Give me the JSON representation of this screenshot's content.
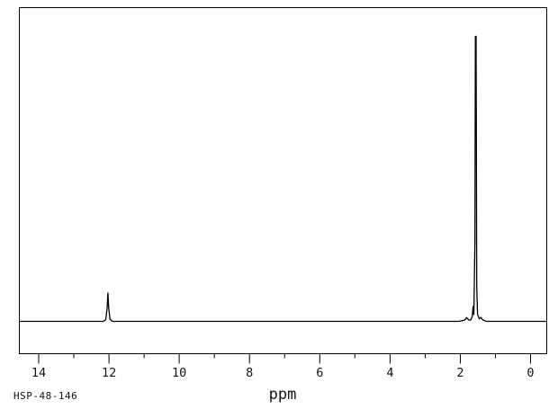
{
  "figure": {
    "background_color": "#ffffff",
    "line_color": "#000000",
    "text_color": "#141414"
  },
  "annotation_id": "HSP-48-146",
  "chart_data": {
    "type": "line",
    "subtype": "1H-NMR-spectrum",
    "title": "",
    "xlabel": "ppm",
    "ylabel": "",
    "x_axis": {
      "unit": "ppm",
      "reversed": true,
      "left_ppm": 14.55,
      "right_ppm": -0.46,
      "major_tick_labels": [
        "14",
        "12",
        "10",
        "8",
        "6",
        "4",
        "2",
        "0"
      ],
      "major_tick_values": [
        14,
        12,
        10,
        8,
        6,
        4,
        2,
        0
      ],
      "minor_tick_values": [
        13,
        11,
        9,
        7,
        5,
        3,
        1
      ]
    },
    "grid": false,
    "legend": false,
    "peaks": [
      {
        "ppm": 12.0,
        "relative_intensity": 0.1
      },
      {
        "ppm": 1.63,
        "relative_intensity": 0.05
      },
      {
        "ppm": 1.55,
        "relative_intensity": 1.0
      }
    ],
    "trace_ppm_intensity": [
      [
        14.55,
        0
      ],
      [
        12.16,
        0
      ],
      [
        12.09,
        0.006
      ],
      [
        12.05,
        0.05
      ],
      [
        12.03,
        0.101
      ],
      [
        12.01,
        0.05
      ],
      [
        11.97,
        0.008
      ],
      [
        11.9,
        0
      ],
      [
        2.05,
        0
      ],
      [
        1.88,
        0.004
      ],
      [
        1.82,
        0.013
      ],
      [
        1.76,
        0.005
      ],
      [
        1.71,
        0.004
      ],
      [
        1.66,
        0.016
      ],
      [
        1.635,
        0.054
      ],
      [
        1.615,
        0.022
      ],
      [
        1.585,
        0.28
      ],
      [
        1.57,
        1.0
      ],
      [
        1.55,
        1.0
      ],
      [
        1.532,
        0.12
      ],
      [
        1.51,
        0.025
      ],
      [
        1.46,
        0.009
      ],
      [
        1.415,
        0.014
      ],
      [
        1.36,
        0.005
      ],
      [
        1.26,
        0
      ],
      [
        -0.46,
        0
      ]
    ],
    "annotation": "HSP-48-146"
  }
}
